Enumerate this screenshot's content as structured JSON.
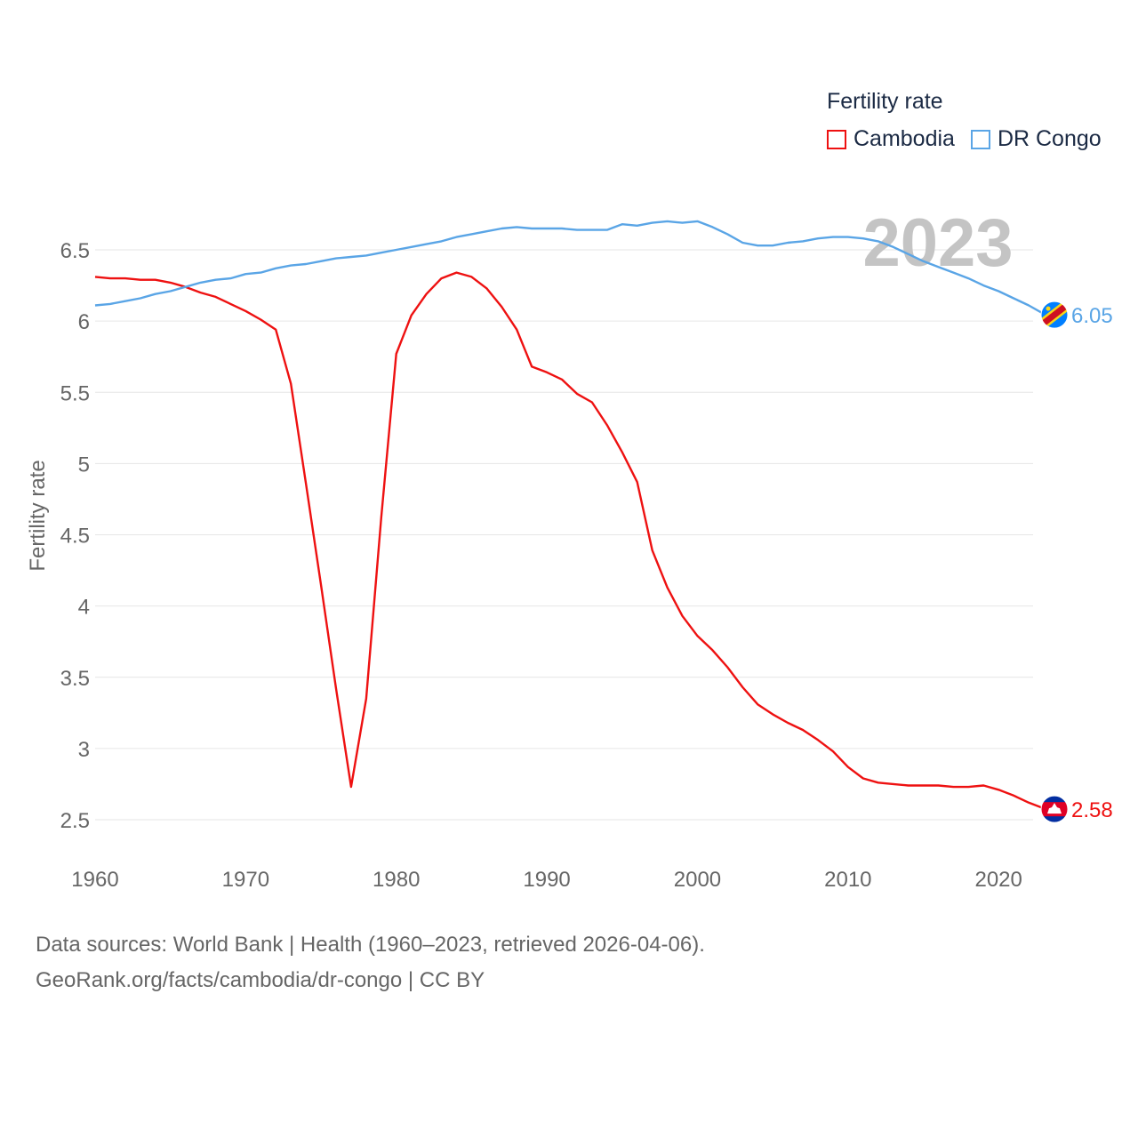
{
  "legend": {
    "title": "Fertility rate",
    "items": [
      {
        "label": "Cambodia",
        "color": "#ee1111"
      },
      {
        "label": "DR Congo",
        "color": "#5aa5e6"
      }
    ]
  },
  "year_label": "2023",
  "sources": {
    "line1": "Data sources: World Bank | Health (1960–2023, retrieved 2026-04-06).",
    "line2": "GeoRank.org/facts/cambodia/dr-congo | CC BY"
  },
  "chart_data": {
    "type": "line",
    "title": "Fertility rate",
    "xlabel": "",
    "ylabel": "Fertility rate",
    "xlim": [
      1960,
      2023
    ],
    "ylim": [
      2.5,
      6.5
    ],
    "x_ticks": [
      1960,
      1970,
      1980,
      1990,
      2000,
      2010,
      2020
    ],
    "y_ticks": [
      2.5,
      3,
      3.5,
      4,
      4.5,
      5,
      5.5,
      6,
      6.5
    ],
    "y_tick_labels": [
      "2.5",
      "3",
      "3.5",
      "4",
      "4.5",
      "5",
      "5.5",
      "6",
      "6.5"
    ],
    "grid": true,
    "legend_position": "top-right",
    "x": [
      1960,
      1961,
      1962,
      1963,
      1964,
      1965,
      1966,
      1967,
      1968,
      1969,
      1970,
      1971,
      1972,
      1973,
      1974,
      1975,
      1976,
      1977,
      1978,
      1979,
      1980,
      1981,
      1982,
      1983,
      1984,
      1985,
      1986,
      1987,
      1988,
      1989,
      1990,
      1991,
      1992,
      1993,
      1994,
      1995,
      1996,
      1997,
      1998,
      1999,
      2000,
      2001,
      2002,
      2003,
      2004,
      2005,
      2006,
      2007,
      2008,
      2009,
      2010,
      2011,
      2012,
      2013,
      2014,
      2015,
      2016,
      2017,
      2018,
      2019,
      2020,
      2021,
      2022,
      2023
    ],
    "series": [
      {
        "name": "Cambodia",
        "color": "#ee1111",
        "end_label": "2.58",
        "values": [
          6.31,
          6.3,
          6.3,
          6.29,
          6.29,
          6.27,
          6.24,
          6.2,
          6.17,
          6.12,
          6.07,
          6.01,
          5.94,
          5.56,
          4.86,
          4.15,
          3.42,
          2.73,
          3.35,
          4.62,
          5.77,
          6.04,
          6.19,
          6.3,
          6.34,
          6.31,
          6.23,
          6.1,
          5.94,
          5.68,
          5.64,
          5.59,
          5.49,
          5.43,
          5.27,
          5.08,
          4.87,
          4.39,
          4.13,
          3.93,
          3.79,
          3.69,
          3.57,
          3.43,
          3.31,
          3.24,
          3.18,
          3.13,
          3.06,
          2.98,
          2.87,
          2.79,
          2.76,
          2.75,
          2.74,
          2.74,
          2.74,
          2.73,
          2.73,
          2.74,
          2.71,
          2.67,
          2.62,
          2.58
        ]
      },
      {
        "name": "DR Congo",
        "color": "#5aa5e6",
        "end_label": "6.05",
        "values": [
          6.11,
          6.12,
          6.14,
          6.16,
          6.19,
          6.21,
          6.24,
          6.27,
          6.29,
          6.3,
          6.33,
          6.34,
          6.37,
          6.39,
          6.4,
          6.42,
          6.44,
          6.45,
          6.46,
          6.48,
          6.5,
          6.52,
          6.54,
          6.56,
          6.59,
          6.61,
          6.63,
          6.65,
          6.66,
          6.65,
          6.65,
          6.65,
          6.64,
          6.64,
          6.64,
          6.68,
          6.67,
          6.69,
          6.7,
          6.69,
          6.7,
          6.66,
          6.61,
          6.55,
          6.53,
          6.53,
          6.55,
          6.56,
          6.58,
          6.59,
          6.59,
          6.58,
          6.56,
          6.52,
          6.47,
          6.42,
          6.38,
          6.34,
          6.3,
          6.25,
          6.21,
          6.16,
          6.11,
          6.05
        ]
      }
    ]
  }
}
